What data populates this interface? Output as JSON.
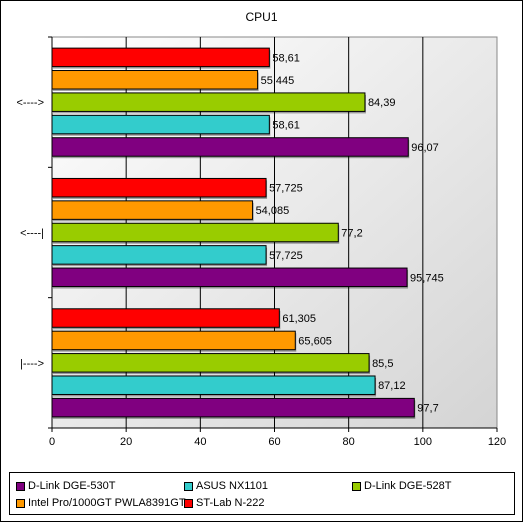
{
  "chart_data": {
    "type": "bar",
    "orientation": "horizontal",
    "title": "CPU1",
    "xlabel": "",
    "ylabel": "",
    "xlim": [
      0,
      120
    ],
    "x_ticks": [
      "0",
      "20",
      "40",
      "60",
      "80",
      "100",
      "120"
    ],
    "grid": true,
    "legend_position": "bottom",
    "categories": [
      "<---->",
      "<----|",
      "|---->"
    ],
    "series": [
      {
        "name": "ST-Lab N-222",
        "color": "#ff0000",
        "values": [
          58.61,
          57.725,
          61.305
        ],
        "labels": [
          "58,61",
          "57,725",
          "61,305"
        ]
      },
      {
        "name": "Intel Pro/1000GT PWLA8391GT",
        "color": "#ff9900",
        "values": [
          55.445,
          54.085,
          65.605
        ],
        "labels": [
          "55,445",
          "54,085",
          "65,605"
        ]
      },
      {
        "name": "D-Link DGE-528T",
        "color": "#99cc00",
        "values": [
          84.39,
          77.2,
          85.5
        ],
        "labels": [
          "84,39",
          "77,2",
          "85,5"
        ]
      },
      {
        "name": "ASUS NX1101",
        "color": "#33cccc",
        "values": [
          58.61,
          57.725,
          87.12
        ],
        "labels": [
          "58,61",
          "57,725",
          "87,12"
        ]
      },
      {
        "name": "D-Link DGE-530T",
        "color": "#800080",
        "values": [
          96.07,
          95.745,
          97.7
        ],
        "labels": [
          "96,07",
          "95,745",
          "97,7"
        ]
      }
    ]
  },
  "legend": {
    "items": [
      {
        "label": "D-Link DGE-530T",
        "color": "#800080"
      },
      {
        "label": "ASUS NX1101",
        "color": "#33cccc"
      },
      {
        "label": "D-Link DGE-528T",
        "color": "#99cc00"
      },
      {
        "label": "Intel Pro/1000GT PWLA8391GT",
        "color": "#ff9900"
      },
      {
        "label": "ST-Lab N-222",
        "color": "#ff0000"
      }
    ]
  }
}
